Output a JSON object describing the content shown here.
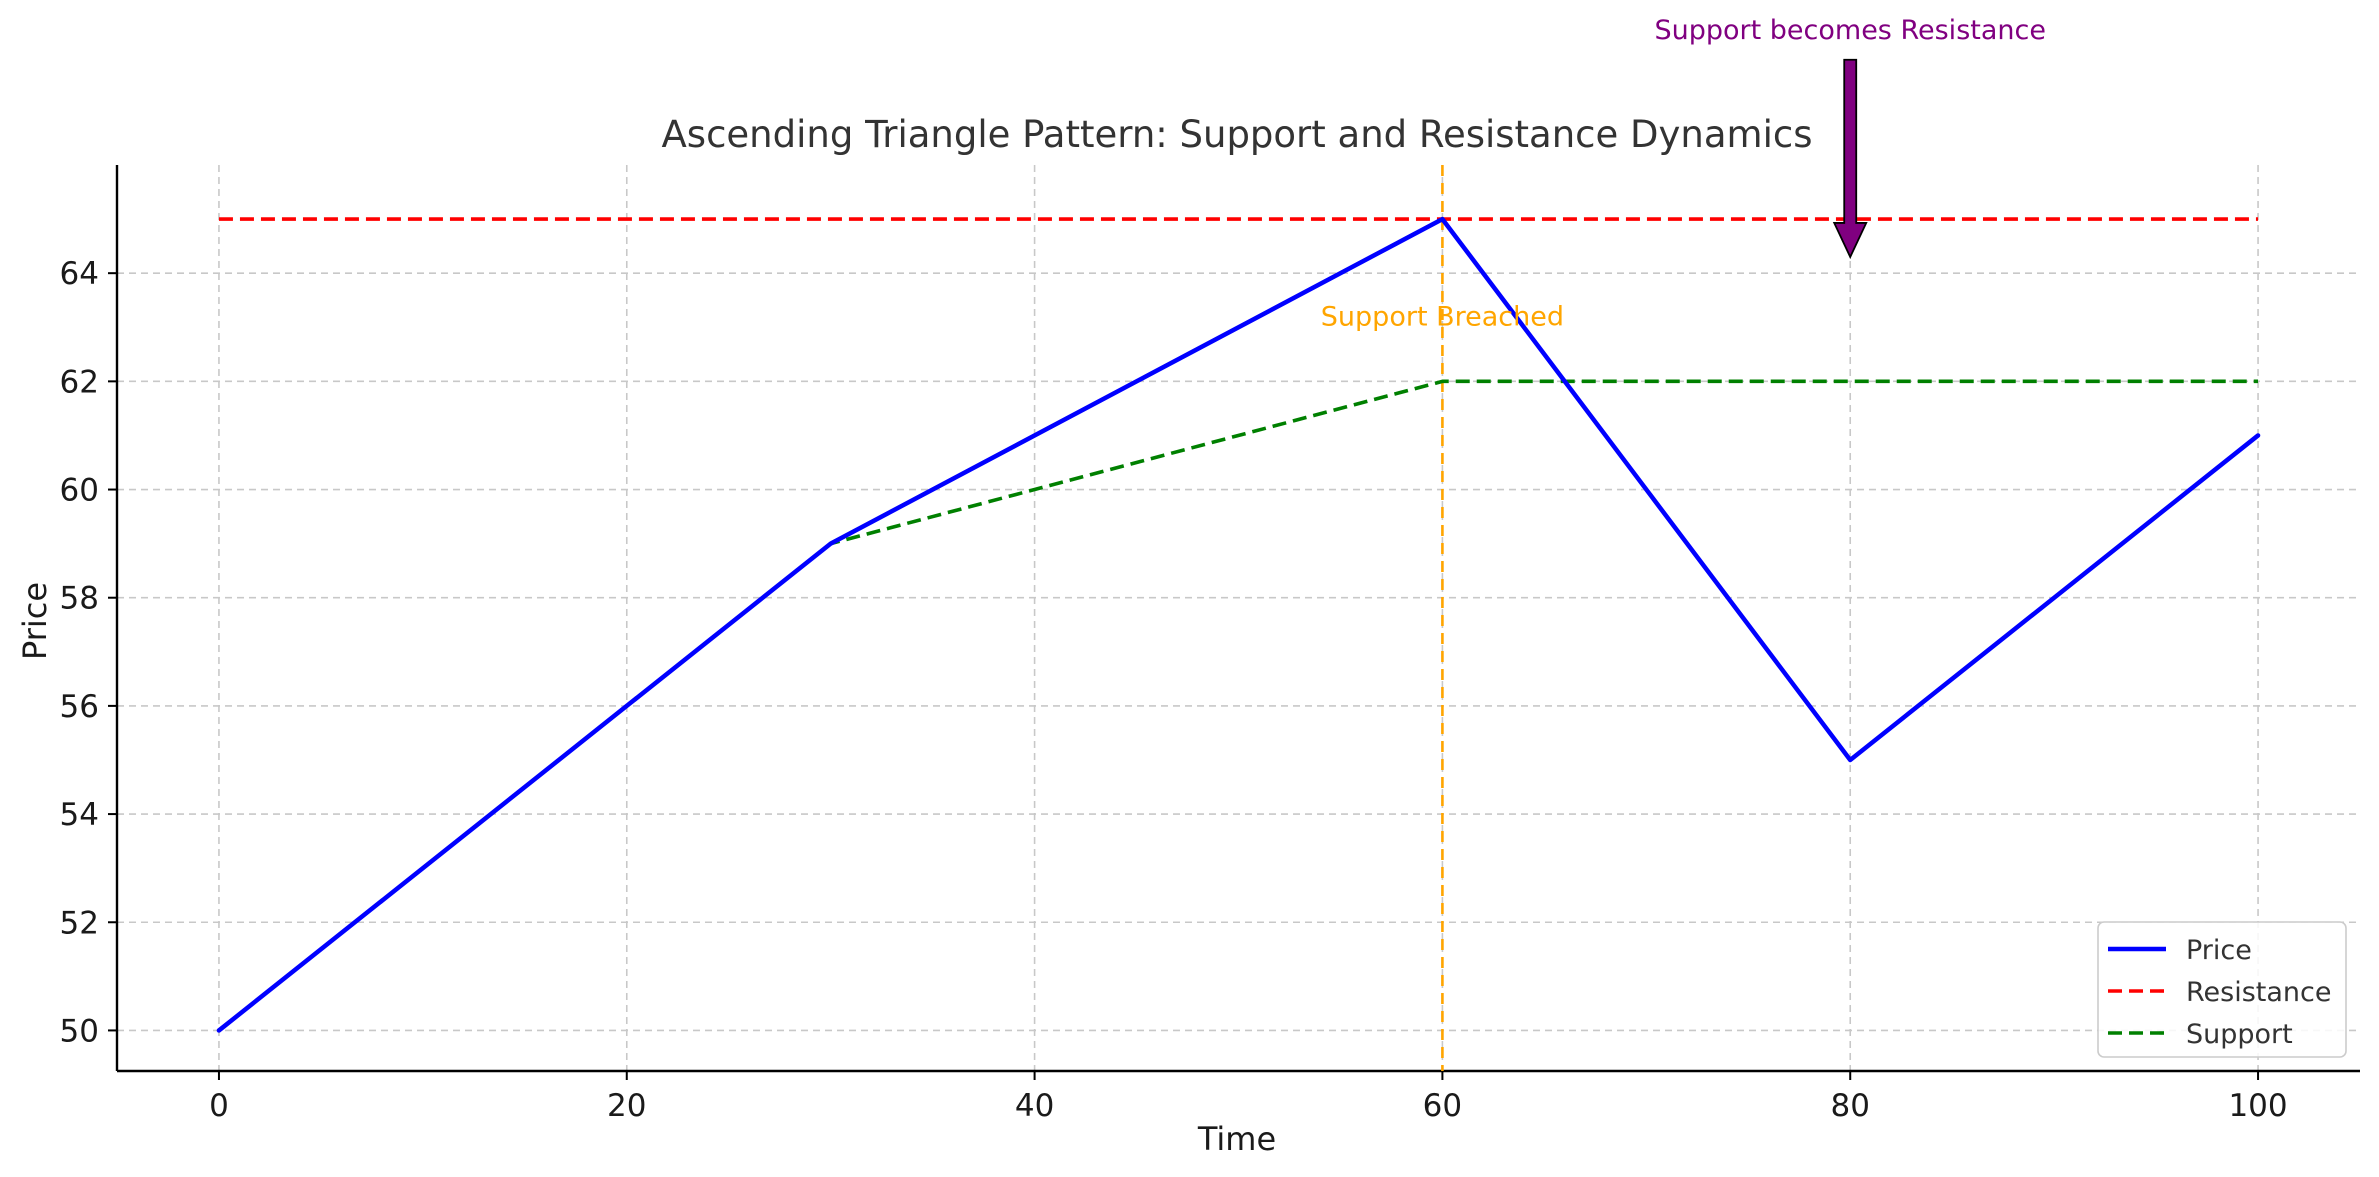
{
  "chart_data": {
    "type": "line",
    "title": "Ascending Triangle Pattern: Support and Resistance Dynamics",
    "xlabel": "Time",
    "ylabel": "Price",
    "xlim": [
      -5,
      105
    ],
    "ylim": [
      49.25,
      66
    ],
    "x_ticks": [
      0,
      20,
      40,
      60,
      80,
      100
    ],
    "y_ticks": [
      50,
      52,
      54,
      56,
      58,
      60,
      62,
      64
    ],
    "grid": true,
    "legend_position": "lower-right",
    "series": [
      {
        "name": "Price",
        "color": "#0000ff",
        "style": "solid",
        "points": [
          [
            0,
            50
          ],
          [
            30,
            59
          ],
          [
            60,
            65
          ],
          [
            80,
            55
          ],
          [
            100,
            61
          ]
        ]
      },
      {
        "name": "Resistance",
        "color": "#ff0000",
        "style": "dashed",
        "points": [
          [
            0,
            65
          ],
          [
            100,
            65
          ]
        ]
      },
      {
        "name": "Support",
        "color": "#008000",
        "style": "dashed",
        "points": [
          [
            0,
            50
          ],
          [
            30,
            59
          ],
          [
            60,
            62
          ],
          [
            100,
            62
          ]
        ]
      }
    ],
    "vertical_line": {
      "x": 60,
      "color": "#ffa500",
      "style": "dashed"
    },
    "annotations": [
      {
        "text": "Support Breached",
        "x": 60,
        "y": 63.2,
        "color": "#ffa500"
      },
      {
        "text": "Support becomes Resistance",
        "x": 80,
        "y": 68.5,
        "color": "#800080",
        "arrow_to": [
          80,
          64.3
        ]
      }
    ]
  }
}
